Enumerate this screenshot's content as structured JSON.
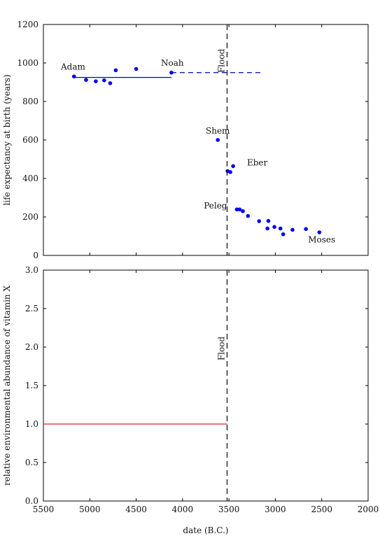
{
  "chart_data": [
    {
      "type": "scatter",
      "ylabel": "life expectancy at birth (years)",
      "ylim": [
        0,
        1200
      ],
      "yticks": [
        0,
        200,
        400,
        600,
        800,
        1000,
        1200
      ],
      "xlim": [
        5500,
        2000
      ],
      "x_reversed": true,
      "grid": false,
      "series": [
        {
          "points": [
            {
              "x": 5170,
              "y": 930
            },
            {
              "x": 5040,
              "y": 912
            },
            {
              "x": 4935,
              "y": 905
            },
            {
              "x": 4845,
              "y": 910
            },
            {
              "x": 4780,
              "y": 895
            },
            {
              "x": 4720,
              "y": 962
            },
            {
              "x": 4500,
              "y": 969
            },
            {
              "x": 4120,
              "y": 950
            },
            {
              "x": 3620,
              "y": 600
            },
            {
              "x": 3515,
              "y": 438
            },
            {
              "x": 3485,
              "y": 433
            },
            {
              "x": 3455,
              "y": 464
            },
            {
              "x": 3415,
              "y": 239
            },
            {
              "x": 3385,
              "y": 239
            },
            {
              "x": 3350,
              "y": 230
            },
            {
              "x": 3295,
              "y": 205
            },
            {
              "x": 3175,
              "y": 178
            },
            {
              "x": 3085,
              "y": 140
            },
            {
              "x": 3075,
              "y": 179
            },
            {
              "x": 3010,
              "y": 148
            },
            {
              "x": 2945,
              "y": 140
            },
            {
              "x": 2915,
              "y": 110
            },
            {
              "x": 2815,
              "y": 133
            },
            {
              "x": 2670,
              "y": 137
            },
            {
              "x": 2525,
              "y": 120
            }
          ],
          "color": "#0000ee"
        }
      ],
      "reference_lines": [
        {
          "x_start": 5170,
          "x_end": 4120,
          "y": 925,
          "style": "solid",
          "color": "#0000ee"
        },
        {
          "x_start": 4120,
          "x_end": 3160,
          "y": 950,
          "style": "dashed",
          "color": "#0000aa"
        }
      ],
      "annotations": [
        {
          "text": "Adam",
          "x": 5180,
          "y": 965
        },
        {
          "text": "Noah",
          "x": 4110,
          "y": 985
        },
        {
          "text": "Shem",
          "x": 3620,
          "y": 632
        },
        {
          "text": "Eber",
          "x": 3305,
          "y": 468
        },
        {
          "text": "Peleg",
          "x": 3520,
          "y": 243
        },
        {
          "text": "Moses",
          "x": 2500,
          "y": 68
        }
      ],
      "vline": {
        "x": 3520,
        "label": "Flood",
        "style": "dashed",
        "color": "#222222"
      }
    },
    {
      "type": "line",
      "xlabel": "date (B.C.)",
      "ylabel": "relative environmental abundance of vitamin X",
      "ylim": [
        0,
        3.0
      ],
      "yticks": [
        "0.0",
        "0.5",
        "1.0",
        "1.5",
        "2.0",
        "2.5",
        "3.0"
      ],
      "xlim": [
        5500,
        2000
      ],
      "x_reversed": true,
      "xticks": [
        5500,
        5000,
        4500,
        4000,
        3500,
        3000,
        2500,
        2000
      ],
      "grid": false,
      "series": [
        {
          "x": [
            5500,
            3520
          ],
          "values": [
            1.0,
            1.0
          ],
          "color": "#dd2222"
        }
      ],
      "vline": {
        "x": 3520,
        "label": "Flood",
        "style": "dashed",
        "color": "#222222"
      }
    }
  ]
}
